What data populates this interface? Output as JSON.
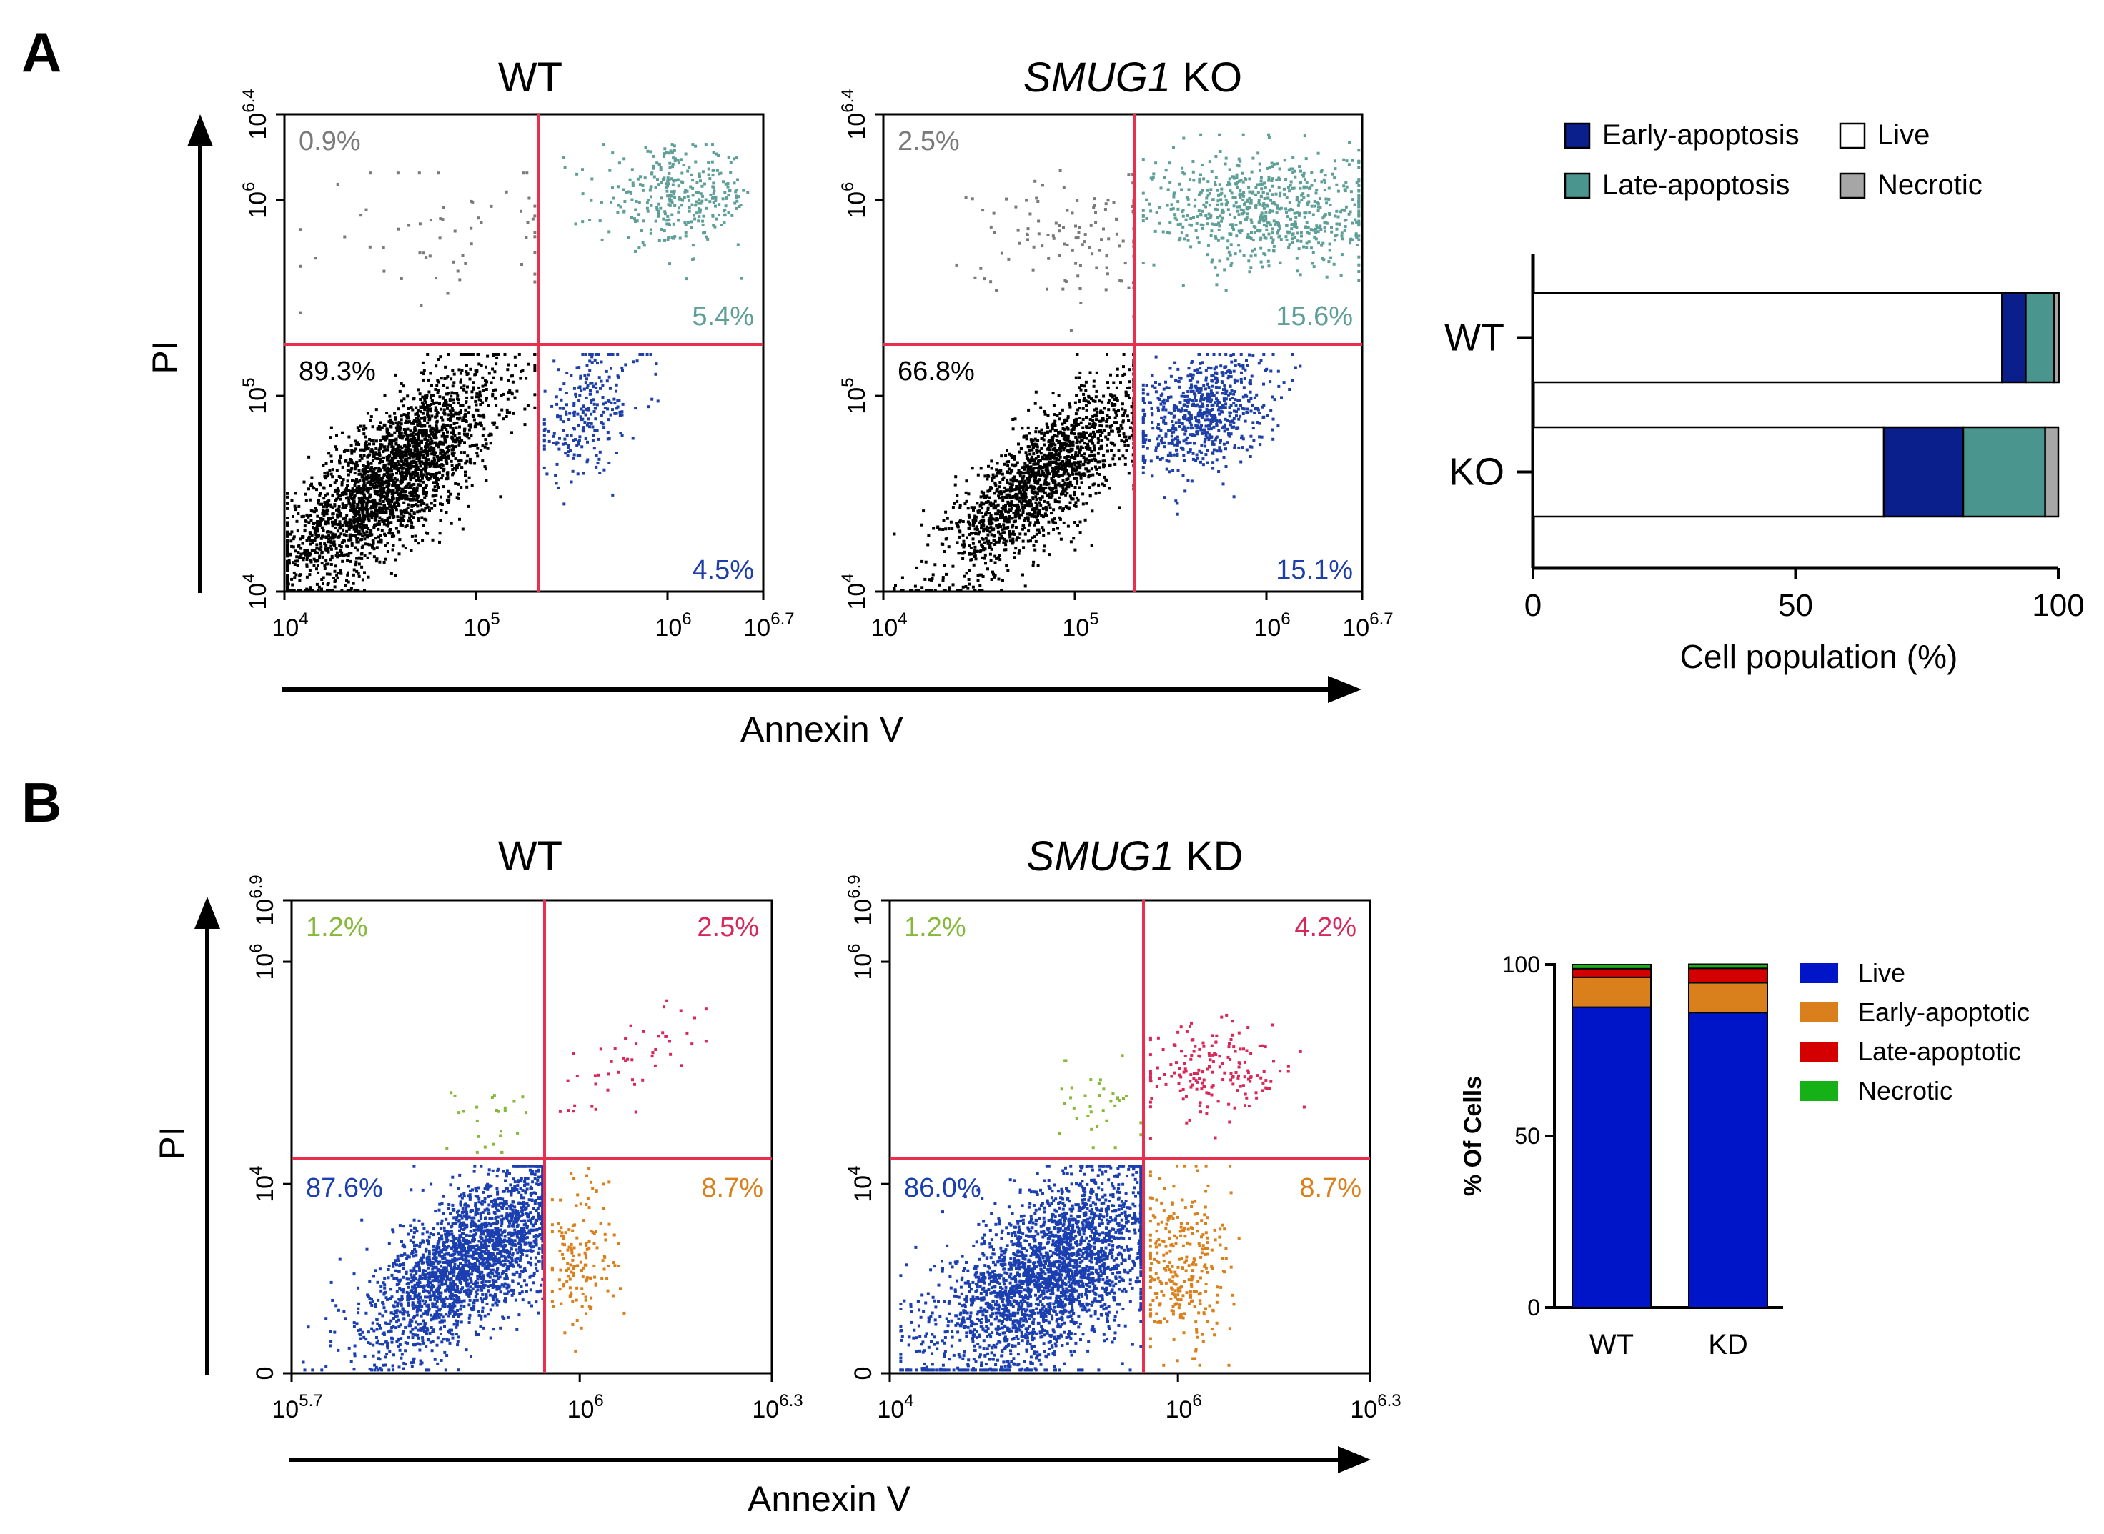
{
  "panel_labels": {
    "a": "A",
    "b": "B"
  },
  "colors": {
    "black": "#000000",
    "teal": "#5f9f98",
    "blue": "#1f3fa8",
    "gray": "#7a7a7a",
    "gate": "#e8304e",
    "navy": "#0a1e8c",
    "teal_bar": "#4a958e",
    "necrotic_gray": "#a6a6a6",
    "b_blue": "#1b3fb0",
    "b_orange": "#d9801c",
    "b_red": "#d8285a",
    "b_green": "#86b83a",
    "live_b": "#0014c8",
    "early_b": "#d9801c",
    "late_b": "#d40000",
    "necrotic_b": "#16b116"
  },
  "panel_a": {
    "axis_label_y": "PI",
    "axis_label_x": "Annexin V",
    "plots": [
      {
        "title": "WT",
        "title_gene": "",
        "title_suffix": "",
        "x_ticks": [
          {
            "base": "10",
            "exp": "4"
          },
          {
            "base": "10",
            "exp": "5"
          },
          {
            "base": "10",
            "exp": "6"
          },
          {
            "base": "10",
            "exp": "6.7"
          }
        ],
        "y_ticks": [
          {
            "base": "10",
            "exp": "4"
          },
          {
            "base": "10",
            "exp": "5"
          },
          {
            "base": "10",
            "exp": "6"
          },
          {
            "base": "10",
            "exp": "6.4"
          }
        ],
        "quadrants": {
          "upper_left": "0.9%",
          "upper_right": "5.4%",
          "lower_left": "89.3%",
          "lower_right": "4.5%"
        }
      },
      {
        "title": "",
        "title_gene": "SMUG1",
        "title_suffix": " KO",
        "x_ticks": [
          {
            "base": "10",
            "exp": "4"
          },
          {
            "base": "10",
            "exp": "5"
          },
          {
            "base": "10",
            "exp": "6"
          },
          {
            "base": "10",
            "exp": "6.7"
          }
        ],
        "y_ticks": [
          {
            "base": "10",
            "exp": "4"
          },
          {
            "base": "10",
            "exp": "5"
          },
          {
            "base": "10",
            "exp": "6"
          },
          {
            "base": "10",
            "exp": "6.4"
          }
        ],
        "quadrants": {
          "upper_left": "2.5%",
          "upper_right": "15.6%",
          "lower_left": "66.8%",
          "lower_right": "15.1%"
        }
      }
    ]
  },
  "panel_b": {
    "axis_label_y": "PI",
    "axis_label_x": "Annexin V",
    "plots": [
      {
        "title": "WT",
        "title_gene": "",
        "title_suffix": "",
        "x_ticks": [
          {
            "base": "10",
            "exp": "5.7"
          },
          {
            "base": "10",
            "exp": "6"
          },
          {
            "base": "10",
            "exp": "6.3"
          }
        ],
        "y_ticks": [
          {
            "base": "0",
            "exp": ""
          },
          {
            "base": "10",
            "exp": "4"
          },
          {
            "base": "10",
            "exp": "6"
          },
          {
            "base": "10",
            "exp": "6.9"
          }
        ],
        "quadrants": {
          "upper_left": "1.2%",
          "upper_right": "2.5%",
          "lower_left": "87.6%",
          "lower_right": "8.7%"
        }
      },
      {
        "title": "",
        "title_gene": "SMUG1",
        "title_suffix": " KD",
        "x_ticks": [
          {
            "base": "10",
            "exp": "4"
          },
          {
            "base": "10",
            "exp": "6"
          },
          {
            "base": "10",
            "exp": "6.3"
          }
        ],
        "y_ticks": [
          {
            "base": "0",
            "exp": ""
          },
          {
            "base": "10",
            "exp": "4"
          },
          {
            "base": "10",
            "exp": "6"
          },
          {
            "base": "10",
            "exp": "6.9"
          }
        ],
        "quadrants": {
          "upper_left": "1.2%",
          "upper_right": "4.2%",
          "lower_left": "86.0%",
          "lower_right": "8.7%"
        }
      }
    ]
  },
  "chart_data": [
    {
      "type": "bar",
      "orientation": "horizontal-stacked",
      "title": "",
      "categories": [
        "WT",
        "KO"
      ],
      "series": [
        {
          "name": "Live",
          "values": [
            89.3,
            66.8
          ]
        },
        {
          "name": "Early-apoptosis",
          "values": [
            4.5,
            15.1
          ]
        },
        {
          "name": "Late-apoptosis",
          "values": [
            5.4,
            15.6
          ]
        },
        {
          "name": "Necrotic",
          "values": [
            0.9,
            2.5
          ]
        }
      ],
      "legend": [
        "Early-apoptosis",
        "Live",
        "Late-apoptosis",
        "Necrotic"
      ],
      "xlabel": "Cell population (%)",
      "ylabel": "",
      "xlim": [
        0,
        100
      ],
      "x_ticks": [
        "0",
        "50",
        "100"
      ]
    },
    {
      "type": "bar",
      "orientation": "vertical-stacked",
      "title": "",
      "categories": [
        "WT",
        "KD"
      ],
      "series": [
        {
          "name": "Live",
          "values": [
            87.6,
            86.0
          ]
        },
        {
          "name": "Early-apoptotic",
          "values": [
            8.7,
            8.7
          ]
        },
        {
          "name": "Late-apoptotic",
          "values": [
            2.5,
            4.2
          ]
        },
        {
          "name": "Necrotic",
          "values": [
            1.2,
            1.2
          ]
        }
      ],
      "legend": [
        "Live",
        "Early-apoptotic",
        "Late-apoptotic",
        "Necrotic"
      ],
      "xlabel": "",
      "ylabel": "% Of Cells",
      "ylim": [
        0,
        100
      ],
      "y_ticks": [
        "0",
        "50",
        "100"
      ]
    }
  ]
}
